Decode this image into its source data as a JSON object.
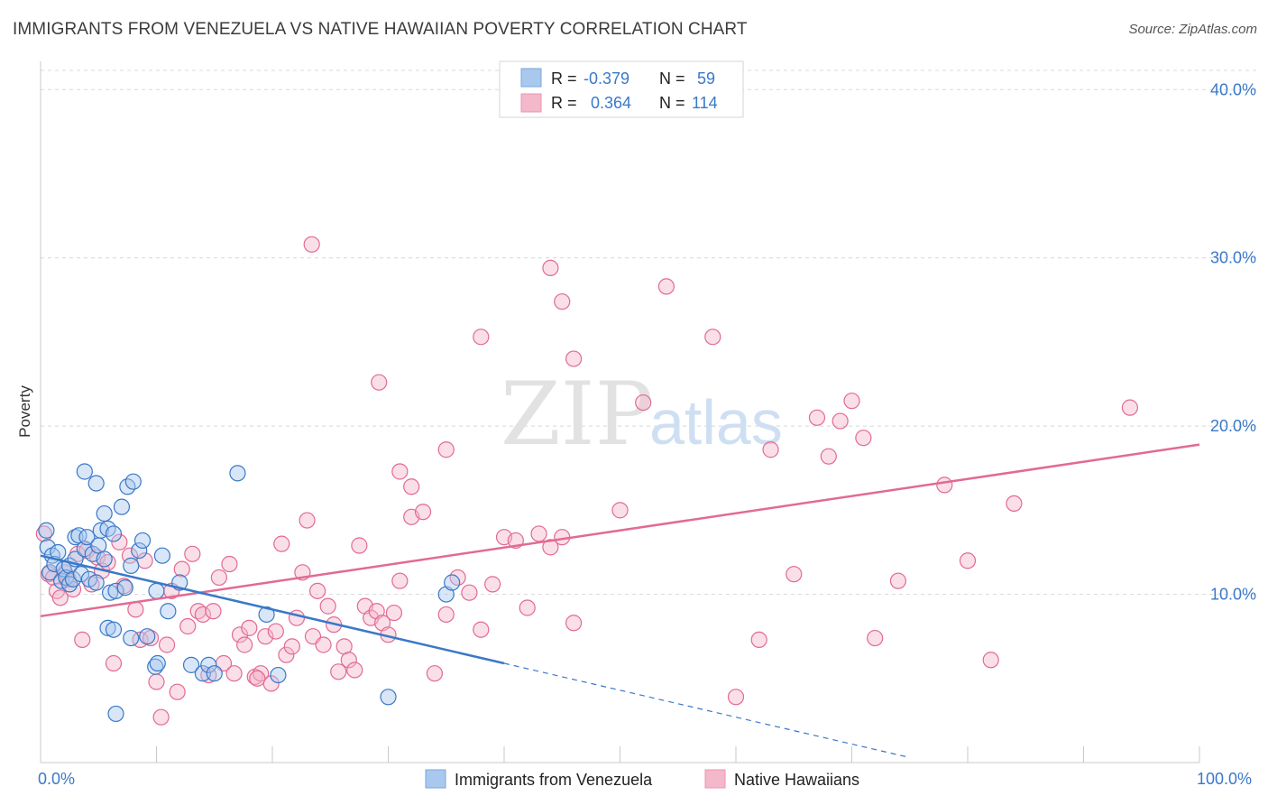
{
  "header": {
    "title": "IMMIGRANTS FROM VENEZUELA VS NATIVE HAWAIIAN POVERTY CORRELATION CHART",
    "source": "Source: ZipAtlas.com"
  },
  "watermark": {
    "zip": "ZIP",
    "atlas": "atlas"
  },
  "colors": {
    "blue": "#3a78c9",
    "blue_fill": "#a9c8ee",
    "pink": "#e26a93",
    "pink_fill": "#f4b8cb",
    "grid": "#d8d8d8",
    "tick_text": "#3a78c9"
  },
  "legend_box": {
    "r_label": "R =",
    "n_label": "N =",
    "rows": [
      {
        "series": "Immigrants from Venezuela",
        "r": "-0.379",
        "n": "59"
      },
      {
        "series": "Native Hawaiians",
        "r": "0.364",
        "n": "114"
      }
    ]
  },
  "chart_data": {
    "type": "scatter",
    "title": "IMMIGRANTS FROM VENEZUELA VS NATIVE HAWAIIAN POVERTY CORRELATION CHART",
    "xlabel": "",
    "ylabel": "Poverty",
    "xlim": [
      0,
      100
    ],
    "ylim": [
      0,
      42
    ],
    "x_tick_labels": [
      "0.0%",
      "100.0%"
    ],
    "y_ticks": [
      10,
      20,
      30,
      40
    ],
    "y_tick_labels": [
      "10.0%",
      "20.0%",
      "30.0%",
      "40.0%"
    ],
    "grid": true,
    "legend_position": "bottom-center",
    "series": [
      {
        "name": "Immigrants from Venezuela",
        "color": "#3a78c9",
        "r": -0.379,
        "n": 59,
        "trend": {
          "x0": 0,
          "y0": 12.3,
          "x1": 40,
          "y1": 5.9,
          "dash_to_x": 75,
          "dash_to_y": 0.3
        },
        "points": [
          [
            0.5,
            13.8
          ],
          [
            0.6,
            12.8
          ],
          [
            0.8,
            11.3
          ],
          [
            1.0,
            12.3
          ],
          [
            1.2,
            11.8
          ],
          [
            1.5,
            12.5
          ],
          [
            1.8,
            10.8
          ],
          [
            2.0,
            11.5
          ],
          [
            2.2,
            11.0
          ],
          [
            2.5,
            10.6
          ],
          [
            2.5,
            11.7
          ],
          [
            2.8,
            10.9
          ],
          [
            3.0,
            12.1
          ],
          [
            3.0,
            13.4
          ],
          [
            3.3,
            13.5
          ],
          [
            3.5,
            11.2
          ],
          [
            3.8,
            12.7
          ],
          [
            4.0,
            13.4
          ],
          [
            4.2,
            10.9
          ],
          [
            4.5,
            12.4
          ],
          [
            4.8,
            10.7
          ],
          [
            5.0,
            12.9
          ],
          [
            5.2,
            13.8
          ],
          [
            5.5,
            12.1
          ],
          [
            5.5,
            14.8
          ],
          [
            5.8,
            13.9
          ],
          [
            6.0,
            10.1
          ],
          [
            6.3,
            13.6
          ],
          [
            6.5,
            10.2
          ],
          [
            7.0,
            15.2
          ],
          [
            7.3,
            10.4
          ],
          [
            7.5,
            16.4
          ],
          [
            7.8,
            11.7
          ],
          [
            8.0,
            16.7
          ],
          [
            8.5,
            12.6
          ],
          [
            8.8,
            13.2
          ],
          [
            9.2,
            7.5
          ],
          [
            10.0,
            10.2
          ],
          [
            10.5,
            12.3
          ],
          [
            11.0,
            9.0
          ],
          [
            12.0,
            10.7
          ],
          [
            13.0,
            5.8
          ],
          [
            14.0,
            5.3
          ],
          [
            14.5,
            5.8
          ],
          [
            15.0,
            5.3
          ],
          [
            17.0,
            17.2
          ],
          [
            19.5,
            8.8
          ],
          [
            20.5,
            5.2
          ],
          [
            30.0,
            3.9
          ],
          [
            35.0,
            10.0
          ],
          [
            35.5,
            10.7
          ],
          [
            3.8,
            17.3
          ],
          [
            4.8,
            16.6
          ],
          [
            5.8,
            8.0
          ],
          [
            6.3,
            7.9
          ],
          [
            6.5,
            2.9
          ],
          [
            7.8,
            7.4
          ],
          [
            9.9,
            5.7
          ],
          [
            10.1,
            5.9
          ]
        ]
      },
      {
        "name": "Native Hawaiians",
        "color": "#e26a93",
        "r": 0.364,
        "n": 114,
        "trend": {
          "x0": 0,
          "y0": 8.7,
          "x1": 100,
          "y1": 18.9
        },
        "points": [
          [
            0.3,
            13.6
          ],
          [
            0.7,
            11.2
          ],
          [
            1.1,
            11.0
          ],
          [
            1.4,
            10.2
          ],
          [
            1.7,
            9.8
          ],
          [
            2.1,
            11.3
          ],
          [
            2.4,
            10.9
          ],
          [
            2.8,
            10.3
          ],
          [
            3.2,
            12.4
          ],
          [
            3.6,
            7.3
          ],
          [
            4.0,
            12.6
          ],
          [
            4.4,
            10.6
          ],
          [
            4.9,
            12.2
          ],
          [
            5.3,
            11.4
          ],
          [
            5.8,
            11.9
          ],
          [
            6.3,
            5.9
          ],
          [
            6.8,
            13.1
          ],
          [
            7.2,
            10.5
          ],
          [
            7.7,
            12.3
          ],
          [
            8.2,
            9.1
          ],
          [
            8.6,
            7.3
          ],
          [
            9.0,
            12.0
          ],
          [
            9.5,
            7.4
          ],
          [
            10.0,
            4.8
          ],
          [
            10.4,
            2.7
          ],
          [
            10.9,
            7.0
          ],
          [
            11.3,
            10.2
          ],
          [
            11.8,
            4.2
          ],
          [
            12.2,
            11.5
          ],
          [
            12.7,
            8.1
          ],
          [
            13.1,
            12.4
          ],
          [
            13.6,
            9.0
          ],
          [
            14.0,
            8.8
          ],
          [
            14.5,
            5.2
          ],
          [
            14.9,
            9.0
          ],
          [
            15.4,
            11.0
          ],
          [
            15.8,
            5.9
          ],
          [
            16.3,
            11.8
          ],
          [
            16.7,
            5.3
          ],
          [
            17.2,
            7.6
          ],
          [
            17.6,
            7.0
          ],
          [
            18.0,
            8.0
          ],
          [
            18.5,
            5.1
          ],
          [
            19.0,
            5.3
          ],
          [
            19.4,
            7.5
          ],
          [
            19.9,
            4.7
          ],
          [
            20.3,
            7.8
          ],
          [
            20.8,
            13.0
          ],
          [
            21.2,
            6.4
          ],
          [
            21.7,
            6.9
          ],
          [
            22.1,
            8.6
          ],
          [
            22.6,
            11.3
          ],
          [
            23.0,
            14.4
          ],
          [
            23.5,
            7.5
          ],
          [
            23.9,
            10.2
          ],
          [
            24.4,
            7.0
          ],
          [
            24.8,
            9.3
          ],
          [
            25.3,
            8.2
          ],
          [
            25.7,
            5.4
          ],
          [
            26.2,
            6.9
          ],
          [
            26.6,
            6.1
          ],
          [
            27.1,
            5.5
          ],
          [
            27.5,
            12.9
          ],
          [
            28.0,
            9.3
          ],
          [
            28.5,
            8.6
          ],
          [
            29.0,
            9.0
          ],
          [
            29.5,
            8.3
          ],
          [
            30.0,
            7.6
          ],
          [
            30.5,
            8.9
          ],
          [
            31.0,
            10.8
          ],
          [
            32.0,
            14.6
          ],
          [
            33.0,
            14.9
          ],
          [
            34.0,
            5.3
          ],
          [
            35.0,
            8.8
          ],
          [
            36.0,
            11.0
          ],
          [
            37.0,
            10.1
          ],
          [
            38.0,
            7.9
          ],
          [
            39.0,
            10.6
          ],
          [
            40.0,
            13.4
          ],
          [
            41.0,
            13.2
          ],
          [
            42.0,
            9.2
          ],
          [
            43.0,
            13.6
          ],
          [
            44.0,
            12.8
          ],
          [
            45.0,
            13.4
          ],
          [
            46.0,
            8.3
          ],
          [
            18.7,
            5.0
          ],
          [
            23.4,
            30.8
          ],
          [
            29.2,
            22.6
          ],
          [
            31.0,
            17.3
          ],
          [
            32.0,
            16.4
          ],
          [
            35.0,
            18.6
          ],
          [
            38.0,
            25.3
          ],
          [
            44.0,
            29.4
          ],
          [
            45.0,
            27.4
          ],
          [
            46.0,
            24.0
          ],
          [
            50.0,
            15.0
          ],
          [
            52.0,
            21.4
          ],
          [
            54.0,
            28.3
          ],
          [
            58.0,
            25.3
          ],
          [
            60.0,
            3.9
          ],
          [
            62.0,
            7.3
          ],
          [
            63.0,
            18.6
          ],
          [
            65.0,
            11.2
          ],
          [
            67.0,
            20.5
          ],
          [
            68.0,
            18.2
          ],
          [
            69.0,
            20.3
          ],
          [
            70.0,
            21.5
          ],
          [
            71.0,
            19.3
          ],
          [
            72.0,
            7.4
          ],
          [
            74.0,
            10.8
          ],
          [
            78.0,
            16.5
          ],
          [
            80.0,
            12.0
          ],
          [
            82.0,
            6.1
          ],
          [
            84.0,
            15.4
          ],
          [
            94.0,
            21.1
          ]
        ]
      }
    ]
  }
}
